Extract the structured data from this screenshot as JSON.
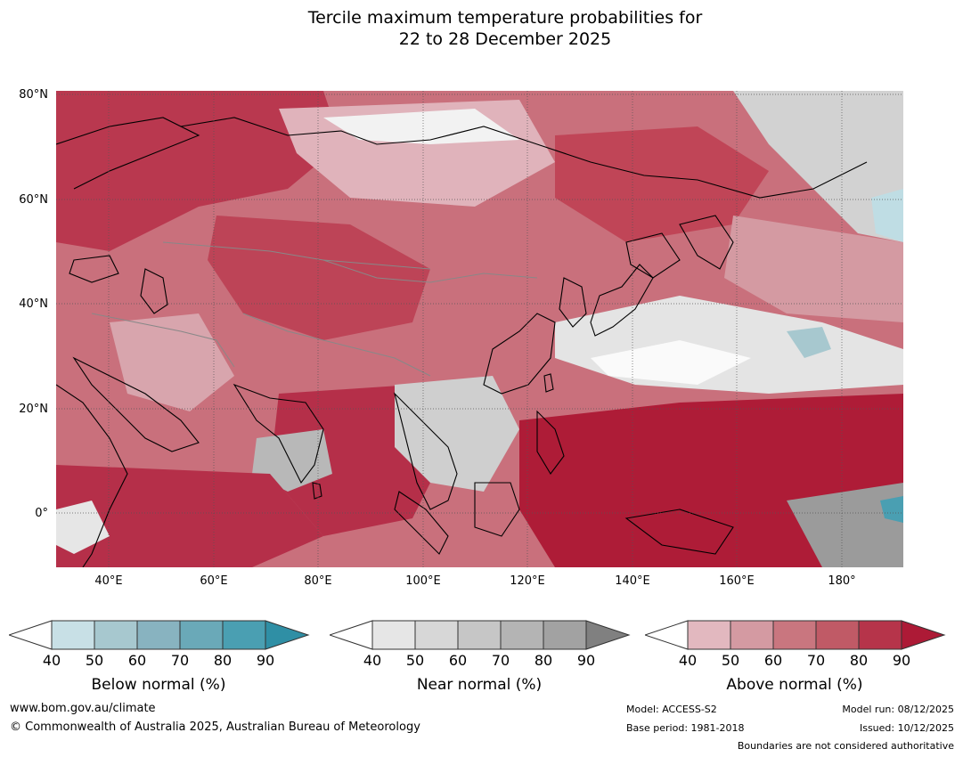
{
  "title": {
    "line1": "Tercile maximum temperature probabilities for",
    "line2": "22 to 28 December 2025"
  },
  "map": {
    "lat_labels": [
      "80°N",
      "60°N",
      "40°N",
      "20°N",
      "0°"
    ],
    "lon_labels": [
      "40°E",
      "60°E",
      "80°E",
      "100°E",
      "120°E",
      "140°E",
      "160°E",
      "180°"
    ],
    "lat_range": [
      -10,
      80
    ],
    "lon_range": [
      30,
      192
    ]
  },
  "colorbars": {
    "below": {
      "label": "Below normal (%)",
      "ticks": [
        "40",
        "50",
        "60",
        "70",
        "80",
        "90"
      ],
      "colors": [
        "#c8e0e6",
        "#a7c8cf",
        "#88b3c0",
        "#6aa9b8",
        "#4a9fb2",
        "#2f8fa5"
      ]
    },
    "near": {
      "label": "Near normal (%)",
      "ticks": [
        "40",
        "50",
        "60",
        "70",
        "80",
        "90"
      ],
      "colors": [
        "#e6e6e6",
        "#d7d7d7",
        "#c6c6c6",
        "#b4b4b4",
        "#a2a2a2",
        "#808080"
      ]
    },
    "above": {
      "label": "Above normal (%)",
      "ticks": [
        "40",
        "50",
        "60",
        "70",
        "80",
        "90"
      ],
      "colors": [
        "#e2b8bf",
        "#d49aa2",
        "#c9767f",
        "#c05a66",
        "#b6344a",
        "#ad1a36"
      ]
    }
  },
  "footer": {
    "url": "www.bom.gov.au/climate",
    "copyright": "© Commonwealth of Australia 2025, Australian Bureau of Meteorology",
    "model": "Model: ACCESS-S2",
    "base_period": "Base period: 1981-2018",
    "model_run": "Model run: 08/12/2025",
    "issued": "Issued: 10/12/2025",
    "disclaimer": "Boundaries are not considered authoritative"
  }
}
